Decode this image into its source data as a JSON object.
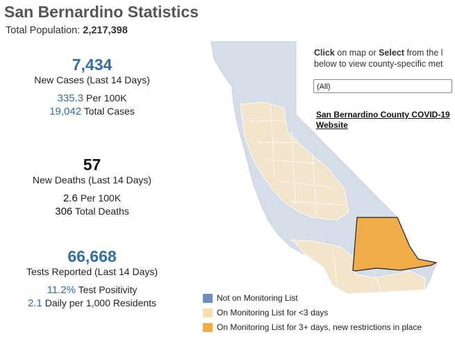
{
  "header": {
    "title": "San Bernardino Statistics",
    "population_label": "Total Population:",
    "population_value": "2,217,398"
  },
  "cases": {
    "value": "7,434",
    "label": "New Cases (Last 14 Days)",
    "per100k_value": "335.3",
    "per100k_label": "Per 100K",
    "total_value": "19,042",
    "total_label": "Total Cases"
  },
  "deaths": {
    "value": "57",
    "label": "New Deaths (Last 14 Days)",
    "per100k_value": "2.6",
    "per100k_label": "Per 100K",
    "total_value": "306",
    "total_label": "Total Deaths"
  },
  "tests": {
    "value": "66,668",
    "label": "Tests Reported (Last 14 Days)",
    "positivity_value": "11.2%",
    "positivity_label": "Test Positivity",
    "daily_value": "2.1",
    "daily_label": "Daily per 1,000 Residents"
  },
  "sidebar": {
    "help_click": "Click",
    "help_mid": " on map or ",
    "help_select": "Select",
    "help_rest": " from the l",
    "help_line2": "below to view county-specific met",
    "dropdown_value": "(All)",
    "county_link_line1": "San Bernardino County COVID-19",
    "county_link_line2": "Website"
  },
  "legend": {
    "items": [
      {
        "label": "Not on Monitoring List",
        "color": "#6b8fbe"
      },
      {
        "label": "On Monitoring List for <3 days",
        "color": "#f5deb0"
      },
      {
        "label": "On Monitoring List for 3+ days, new restrictions in place",
        "color": "#efac47"
      }
    ]
  },
  "colors": {
    "accent_blue": "#2f6ea8",
    "map_not_monitored": "#d4dde8",
    "map_under3": "#f3e5cc",
    "map_3plus": "#efac47"
  }
}
